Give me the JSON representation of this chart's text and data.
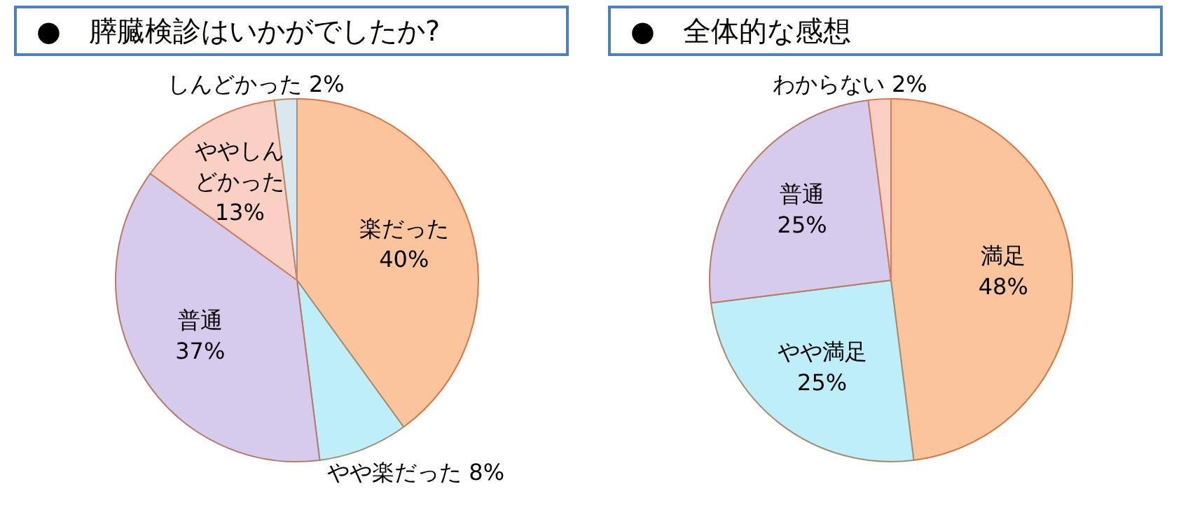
{
  "chart_data": [
    {
      "type": "pie",
      "title": "●　膵臓検診はいかがでしたか?",
      "categories": [
        "楽だった",
        "やや楽だった",
        "普通",
        "ややしんどかった",
        "しんどかった"
      ],
      "values": [
        40,
        8,
        37,
        13,
        2
      ],
      "value_labels": [
        "40%",
        "8%",
        "37%",
        "13%",
        "2%"
      ],
      "colors": [
        "#fcc49c",
        "#bfeefb",
        "#d6cbec",
        "#fbd0c4",
        "#d8e8ee"
      ],
      "legend": false
    },
    {
      "type": "pie",
      "title": "●　全体的な感想",
      "categories": [
        "満足",
        "やや満足",
        "普通",
        "わからない"
      ],
      "values": [
        48,
        25,
        25,
        2
      ],
      "value_labels": [
        "48%",
        "25%",
        "25%",
        "2%"
      ],
      "colors": [
        "#fcc49c",
        "#bfeefb",
        "#d6cbec",
        "#fbd0c4"
      ],
      "legend": false
    }
  ]
}
